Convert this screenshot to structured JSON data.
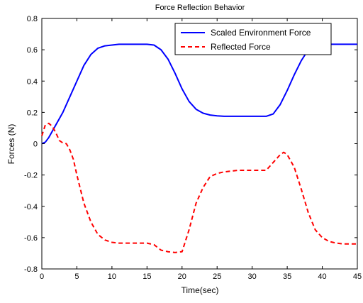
{
  "chart_data": {
    "type": "line",
    "title": "Force Reflection Behavior",
    "xlabel": "Time(sec)",
    "ylabel": "Forces (N)",
    "xlim": [
      0,
      45
    ],
    "ylim": [
      -0.8,
      0.8
    ],
    "xticks": [
      0,
      5,
      10,
      15,
      20,
      25,
      30,
      35,
      40,
      45
    ],
    "yticks": [
      -0.8,
      -0.6,
      -0.4,
      -0.2,
      0,
      0.2,
      0.4,
      0.6,
      0.8
    ],
    "xtick_labels": [
      "0",
      "5",
      "10",
      "15",
      "20",
      "25",
      "30",
      "35",
      "40",
      "45"
    ],
    "ytick_labels": [
      "-0.8",
      "-0.6",
      "-0.4",
      "-0.2",
      "0",
      "0.2",
      "0.4",
      "0.6",
      "0.8"
    ],
    "grid": false,
    "legend_position": "top-right",
    "series": [
      {
        "name": "Scaled Environment Force",
        "color": "#0000ff",
        "dash": "solid",
        "x": [
          0,
          0.5,
          1,
          2,
          3,
          4,
          5,
          6,
          7,
          8,
          9,
          10,
          11,
          12,
          13,
          14,
          15,
          16,
          17,
          18,
          19,
          20,
          21,
          22,
          23,
          24,
          25,
          26,
          28,
          30,
          31,
          32,
          33,
          34,
          35,
          36,
          37,
          38,
          39,
          40,
          41,
          45
        ],
        "y": [
          0,
          0.01,
          0.04,
          0.12,
          0.2,
          0.3,
          0.4,
          0.5,
          0.57,
          0.61,
          0.625,
          0.63,
          0.635,
          0.635,
          0.635,
          0.635,
          0.635,
          0.63,
          0.6,
          0.54,
          0.45,
          0.35,
          0.27,
          0.22,
          0.195,
          0.183,
          0.178,
          0.175,
          0.175,
          0.175,
          0.175,
          0.175,
          0.19,
          0.25,
          0.34,
          0.44,
          0.53,
          0.6,
          0.625,
          0.633,
          0.635,
          0.635
        ]
      },
      {
        "name": "Reflected Force",
        "color": "#ff0000",
        "dash": "dashed",
        "x": [
          0,
          0.5,
          1,
          1.5,
          2,
          2.5,
          3,
          3.5,
          4,
          4.5,
          5,
          5.5,
          6,
          7,
          8,
          9,
          10,
          11,
          12,
          13,
          14,
          15,
          16,
          17,
          18,
          19,
          20,
          21,
          22,
          23,
          24,
          25,
          26,
          28,
          30,
          31,
          32,
          33,
          34,
          34.5,
          35,
          36,
          37,
          38,
          39,
          40,
          41,
          42,
          43,
          45
        ],
        "y": [
          0.05,
          0.12,
          0.13,
          0.11,
          0.07,
          0.02,
          0.005,
          0,
          -0.04,
          -0.1,
          -0.2,
          -0.29,
          -0.38,
          -0.5,
          -0.58,
          -0.615,
          -0.63,
          -0.635,
          -0.635,
          -0.635,
          -0.635,
          -0.635,
          -0.645,
          -0.68,
          -0.69,
          -0.695,
          -0.69,
          -0.55,
          -0.38,
          -0.28,
          -0.21,
          -0.19,
          -0.18,
          -0.17,
          -0.17,
          -0.17,
          -0.17,
          -0.12,
          -0.07,
          -0.055,
          -0.07,
          -0.15,
          -0.29,
          -0.44,
          -0.55,
          -0.6,
          -0.625,
          -0.635,
          -0.64,
          -0.64
        ]
      }
    ]
  }
}
